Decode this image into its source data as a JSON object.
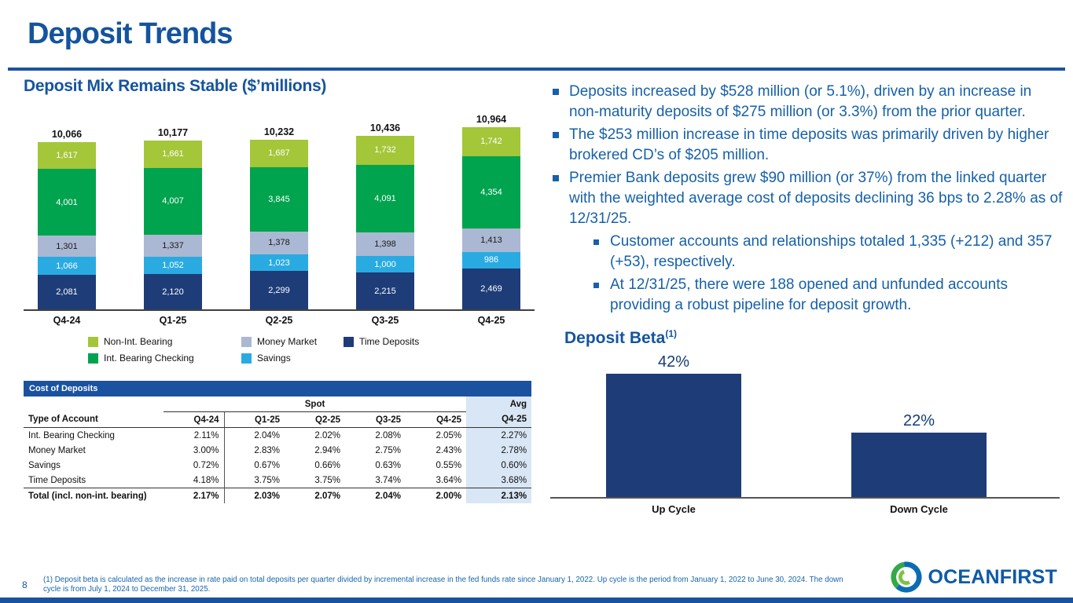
{
  "slide": {
    "title": "Deposit Trends",
    "page_number": "8",
    "logo_text": "OCEANFIRST",
    "footnote": "(1)  Deposit beta is calculated as the increase in rate paid on total deposits per quarter divided by incremental increase in the fed funds rate since January 1, 2022. Up cycle is the period from January 1, 2022 to June 30, 2024. The down cycle is from July 1, 2024 to December 31, 2025."
  },
  "bullets": [
    {
      "level": 1,
      "text": "Deposits increased by $528 million (or 5.1%), driven by an increase in non-maturity deposits of $275 million (or 3.3%) from the prior quarter."
    },
    {
      "level": 1,
      "text": "The $253 million increase in time deposits was primarily driven by higher brokered CD’s of $205 million."
    },
    {
      "level": 1,
      "text": "Premier Bank deposits grew $90 million (or 37%) from the linked quarter with the weighted average cost of deposits declining 36 bps to 2.28% as of 12/31/25."
    },
    {
      "level": 2,
      "text": "Customer accounts and relationships totaled 1,335 (+212) and 357 (+53), respectively."
    },
    {
      "level": 2,
      "text": "At 12/31/25, there were 188 opened and unfunded accounts providing a robust pipeline for deposit growth."
    }
  ],
  "chart_data": [
    {
      "type": "bar",
      "stacked": true,
      "title": "Deposit Mix Remains Stable ($’millions)",
      "categories": [
        "Q4-24",
        "Q1-25",
        "Q2-25",
        "Q3-25",
        "Q4-25"
      ],
      "series": [
        {
          "name": "Time Deposits",
          "color": "#1E3C78",
          "label_color": "#FFFFFF",
          "values": [
            2081,
            2120,
            2299,
            2215,
            2469
          ]
        },
        {
          "name": "Savings",
          "color": "#29ABE2",
          "label_color": "#FFFFFF",
          "values": [
            1066,
            1052,
            1023,
            1000,
            986
          ]
        },
        {
          "name": "Money Market",
          "color": "#ABB8D3",
          "label_color": "#1A1A1A",
          "values": [
            1301,
            1337,
            1378,
            1398,
            1413
          ]
        },
        {
          "name": "Int. Bearing Checking",
          "color": "#00A34E",
          "label_color": "#FFFFFF",
          "values": [
            4001,
            4007,
            3845,
            4091,
            4354
          ]
        },
        {
          "name": "Non-Int. Bearing",
          "color": "#A4C639",
          "label_color": "#FFFFFF",
          "values": [
            1617,
            1661,
            1687,
            1732,
            1742
          ]
        }
      ],
      "totals": [
        10066,
        10177,
        10232,
        10436,
        10964
      ],
      "legend": [
        {
          "name": "Non-Int. Bearing",
          "color": "#A4C639"
        },
        {
          "name": "Money Market",
          "color": "#ABB8D3"
        },
        {
          "name": "Time Deposits",
          "color": "#1E3C78"
        },
        {
          "name": "Int. Bearing Checking",
          "color": "#00A34E"
        },
        {
          "name": "Savings",
          "color": "#29ABE2"
        }
      ],
      "ylim": [
        0,
        10964
      ],
      "grid": false,
      "legend_position": "bottom"
    },
    {
      "type": "bar",
      "title": "Deposit Beta",
      "title_sup": "(1)",
      "categories": [
        "Up Cycle",
        "Down Cycle"
      ],
      "values": [
        42,
        22
      ],
      "labels": [
        "42%",
        "22%"
      ],
      "bar_color": "#1E3C78",
      "ylim": [
        0,
        45
      ],
      "grid": false
    }
  ],
  "cost_table": {
    "title": "Cost of Deposits",
    "spot_label": "Spot",
    "avg_label": "Avg",
    "columns": [
      "Type of Account",
      "Q4-24",
      "Q1-25",
      "Q2-25",
      "Q3-25",
      "Q4-25"
    ],
    "avg_column": "Q4-25",
    "rows": [
      {
        "label": "Int. Bearing Checking",
        "values": [
          "2.11%",
          "2.04%",
          "2.02%",
          "2.08%",
          "2.05%"
        ],
        "avg": "2.27%",
        "total": false
      },
      {
        "label": "Money Market",
        "values": [
          "3.00%",
          "2.83%",
          "2.94%",
          "2.75%",
          "2.43%"
        ],
        "avg": "2.78%",
        "total": false
      },
      {
        "label": "Savings",
        "values": [
          "0.72%",
          "0.67%",
          "0.66%",
          "0.63%",
          "0.55%"
        ],
        "avg": "0.60%",
        "total": false
      },
      {
        "label": "Time Deposits",
        "values": [
          "4.18%",
          "3.75%",
          "3.75%",
          "3.74%",
          "3.64%"
        ],
        "avg": "3.68%",
        "total": false
      },
      {
        "label": "Total (incl. non-int. bearing)",
        "values": [
          "2.17%",
          "2.03%",
          "2.07%",
          "2.04%",
          "2.00%"
        ],
        "avg": "2.13%",
        "total": true
      }
    ]
  },
  "colors": {
    "brand_blue": "#14549E",
    "accent_bar": "#1A52A0",
    "navy": "#1E3C78",
    "green": "#00A34E",
    "lime": "#A4C639",
    "sky": "#29ABE2",
    "gray_blue": "#ABB8D3",
    "avg_column_bg": "#D9E6F5"
  }
}
